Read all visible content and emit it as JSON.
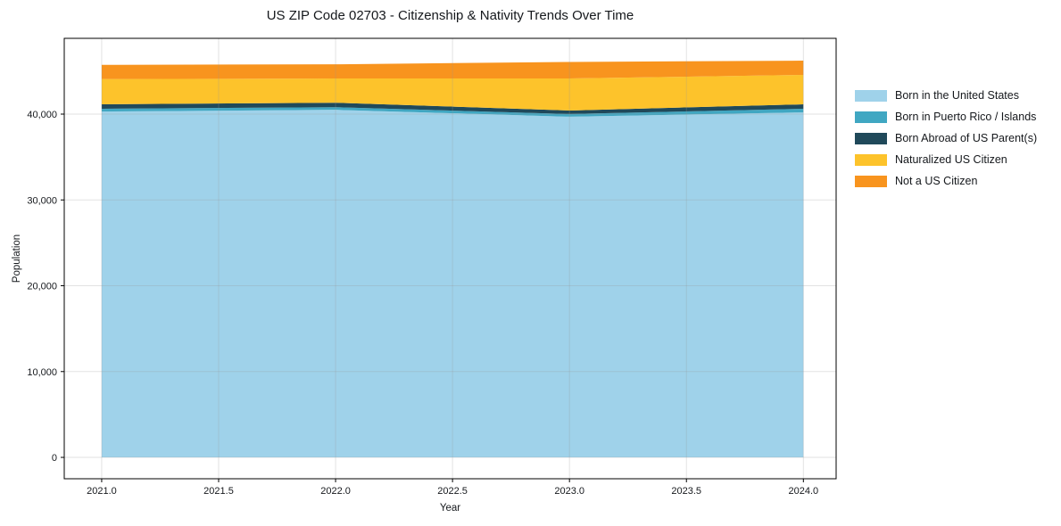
{
  "title": "US ZIP Code 02703 - Citizenship & Nativity Trends Over Time",
  "chart_data": {
    "type": "area",
    "stacked": true,
    "title": "US ZIP Code 02703 - Citizenship & Nativity Trends Over Time",
    "xlabel": "Year",
    "ylabel": "Population",
    "x": [
      2021,
      2022,
      2023,
      2024
    ],
    "series": [
      {
        "name": "Born in the United States",
        "color": "#9FD2EA",
        "values": [
          40300,
          40500,
          39700,
          40200
        ]
      },
      {
        "name": "Born in Puerto Rico / Islands",
        "color": "#40A7C2",
        "values": [
          320,
          310,
          310,
          420
        ]
      },
      {
        "name": "Born Abroad of US Parent(s)",
        "color": "#20495A",
        "values": [
          520,
          520,
          410,
          520
        ]
      },
      {
        "name": "Naturalized US Citizen",
        "color": "#FDC32B",
        "values": [
          2950,
          2820,
          3730,
          3430
        ]
      },
      {
        "name": "Not a US Citizen",
        "color": "#F8941E",
        "values": [
          1650,
          1650,
          1930,
          1660
        ]
      }
    ],
    "totals": [
      45740,
      45800,
      46080,
      46230
    ],
    "x_ticks": [
      "2021.0",
      "2021.5",
      "2022.0",
      "2022.5",
      "2023.0",
      "2023.5",
      "2024.0"
    ],
    "x_tick_values": [
      2021,
      2021.5,
      2022,
      2022.5,
      2023,
      2023.5,
      2024
    ],
    "y_ticks": [
      "0",
      "10,000",
      "20,000",
      "30,000",
      "40,000"
    ],
    "y_tick_values": [
      0,
      10000,
      20000,
      30000,
      40000
    ],
    "xlim": [
      2020.84,
      2024.14
    ],
    "ylim": [
      -2490,
      48830
    ],
    "grid": true,
    "legend_position": "right-outside",
    "background_color": "#ffffff",
    "grid_color": "#969696",
    "spine_color": "#000000"
  }
}
